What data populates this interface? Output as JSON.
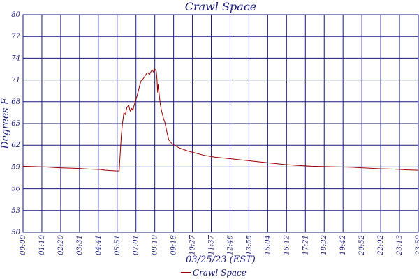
{
  "chart_data": {
    "type": "line",
    "title": "Crawl Space",
    "xlabel": "03/25/23 (EST)",
    "ylabel": "Degrees F",
    "ylim": [
      50,
      80
    ],
    "yticks": [
      "50",
      "53",
      "56",
      "59",
      "62",
      "65",
      "68",
      "71",
      "74",
      "77",
      "80"
    ],
    "xlim_minutes": [
      0,
      1439
    ],
    "xticks": [
      "00:00",
      "01:10",
      "02:20",
      "03:31",
      "04:41",
      "05:51",
      "07:01",
      "08:10",
      "09:18",
      "10:27",
      "11:37",
      "12:46",
      "13:55",
      "15:04",
      "16:12",
      "17:21",
      "18:32",
      "19:42",
      "20:52",
      "22:02",
      "23:13",
      "23:59"
    ],
    "grid": true,
    "legend_position": "bottom-center",
    "colors": {
      "grid": "#1a1a7a",
      "text": "#1a1a7a",
      "series": "#990000"
    },
    "series": [
      {
        "name": "Crawl Space",
        "x": [
          0,
          40,
          80,
          120,
          160,
          200,
          240,
          280,
          300,
          320,
          340,
          350,
          352,
          355,
          358,
          362,
          367,
          372,
          378,
          385,
          390,
          396,
          400,
          405,
          412,
          420,
          425,
          430,
          438,
          445,
          450,
          455,
          460,
          465,
          470,
          475,
          480,
          485,
          488,
          490,
          492,
          494,
          497,
          500,
          504,
          508,
          512,
          516,
          520,
          525,
          530,
          540,
          555,
          570,
          600,
          630,
          660,
          700,
          750,
          800,
          850,
          900,
          950,
          1000,
          1050,
          1100,
          1150,
          1200,
          1250,
          1300,
          1350,
          1400,
          1439
        ],
        "y": [
          59.1,
          59.05,
          59.0,
          58.9,
          58.85,
          58.8,
          58.7,
          58.65,
          58.55,
          58.5,
          58.45,
          58.45,
          59.8,
          61.5,
          63.5,
          65.0,
          66.5,
          66.2,
          67.2,
          67.5,
          66.7,
          67.1,
          66.8,
          67.6,
          68.4,
          69.5,
          70.3,
          70.9,
          71.2,
          71.6,
          71.9,
          72.0,
          71.7,
          72.1,
          72.4,
          72.1,
          72.5,
          72.2,
          71.0,
          69.3,
          70.4,
          69.7,
          68.5,
          67.6,
          66.8,
          66.2,
          65.6,
          65.2,
          64.5,
          63.6,
          62.8,
          62.3,
          61.9,
          61.6,
          61.2,
          60.9,
          60.6,
          60.35,
          60.15,
          59.95,
          59.75,
          59.55,
          59.35,
          59.2,
          59.1,
          59.05,
          59.0,
          58.95,
          58.85,
          58.75,
          58.7,
          58.6,
          58.55
        ]
      }
    ]
  }
}
